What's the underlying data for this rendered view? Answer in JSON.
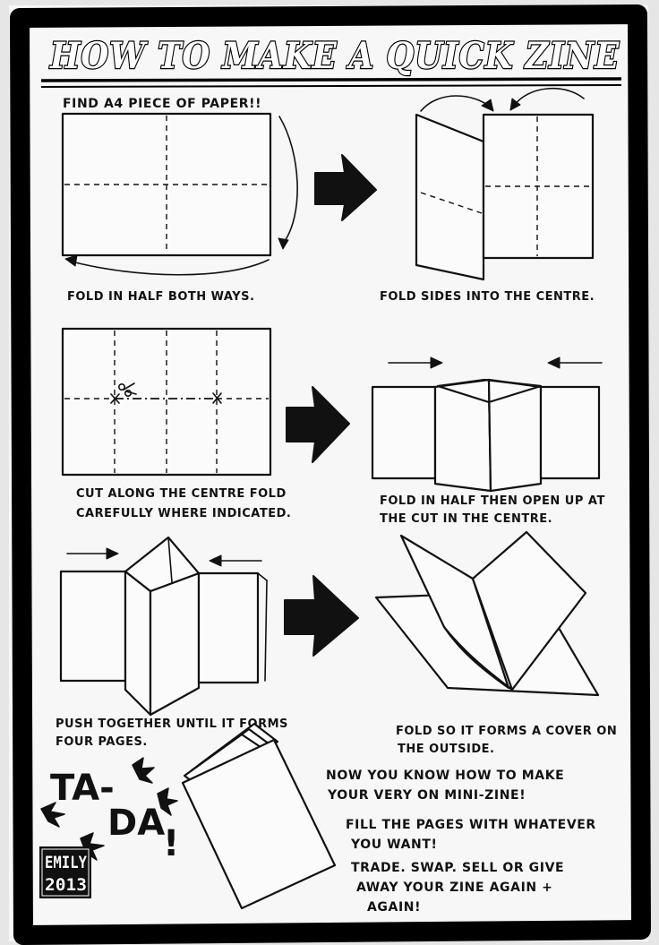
{
  "title": "HOW TO MAKE A QUICK ZINE",
  "header_note": "FIND A4 PIECE OF PAPER!!",
  "steps": [
    {
      "caption_lines": [
        "FOLD IN HALF BOTH WAYS."
      ]
    },
    {
      "caption_lines": [
        "FOLD SIDES INTO THE CENTRE."
      ]
    },
    {
      "caption_lines": [
        "CUT ALONG THE CENTRE FOLD",
        "CAREFULLY WHERE INDICATED."
      ]
    },
    {
      "caption_lines": [
        "FOLD IN HALF THEN OPEN UP AT",
        "THE CUT IN THE CENTRE."
      ]
    },
    {
      "caption_lines": [
        "PUSH TOGETHER UNTIL IT FORMS",
        "FOUR PAGES."
      ]
    },
    {
      "caption_lines": [
        "FOLD SO IT FORMS A COVER ON",
        "THE OUTSIDE."
      ]
    }
  ],
  "tada": {
    "line1": "TA-",
    "line2": "DA",
    "bang": "!"
  },
  "signature": {
    "name": "EMILY",
    "year": "2013"
  },
  "closing": {
    "lines1": [
      "NOW YOU KNOW HOW TO MAKE",
      "YOUR VERY ON MINI-ZINE!"
    ],
    "lines2": [
      "FILL THE PAGES WITH WHATEVER",
      "YOU WANT!"
    ],
    "lines3": [
      "TRADE. SWAP. SELL OR GIVE",
      "AWAY YOUR ZINE AGAIN +",
      "AGAIN!"
    ]
  }
}
